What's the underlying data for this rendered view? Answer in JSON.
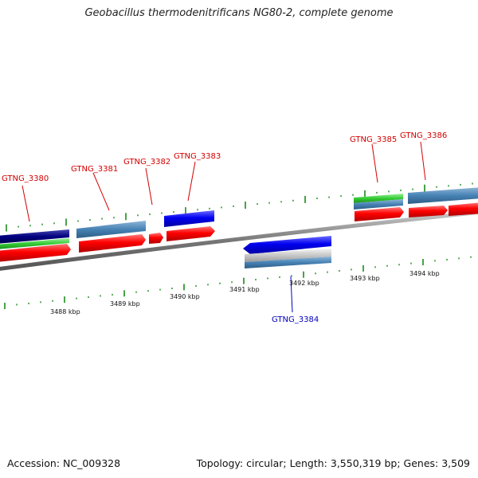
{
  "title": "Geobacillus thermodenitrificans NG80-2, complete genome",
  "footer": {
    "accession": "Accession: NC_009328",
    "summary": "Topology: circular; Length: 3,550,319 bp; Genes: 3,509"
  },
  "scale": {
    "ticks_inner": [
      "3488 kbp",
      "3489 kbp",
      "3490 kbp",
      "3491 kbp",
      "3492 kbp",
      "3493 kbp",
      "3494 kbp"
    ]
  },
  "genes": [
    {
      "name": "GTNG_3380",
      "color": "#d40000"
    },
    {
      "name": "GTNG_3381",
      "color": "#d40000"
    },
    {
      "name": "GTNG_3382",
      "color": "#d40000"
    },
    {
      "name": "GTNG_3383",
      "color": "#d40000"
    },
    {
      "name": "GTNG_3384",
      "color": "#0000c0"
    },
    {
      "name": "GTNG_3385",
      "color": "#d40000"
    },
    {
      "name": "GTNG_3386",
      "color": "#d40000"
    }
  ],
  "colors": {
    "cds_forward": "#ff0000",
    "cds_reverse": "#0000ff",
    "feature_steelblue": "#4682b4",
    "feature_green": "#33cc33",
    "feature_navy": "#000080",
    "feature_grey": "#c8c8c8",
    "backbone": "#888888",
    "tick": "#1a8a1a"
  }
}
